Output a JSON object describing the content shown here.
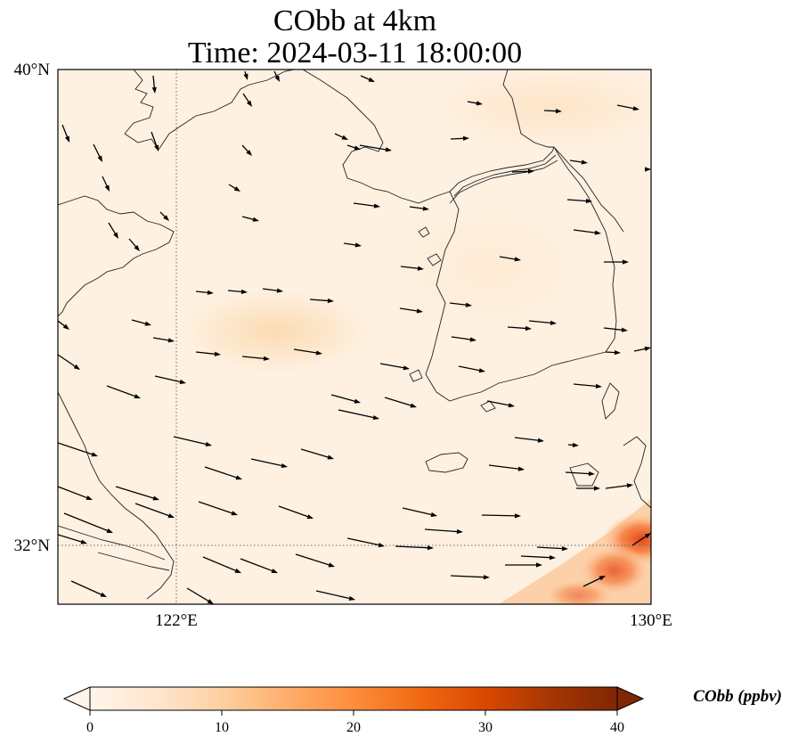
{
  "title": {
    "line1": "CObb at 4km",
    "line2": "Time: 2024-03-11 18:00:00"
  },
  "map": {
    "lat_labels": [
      "40°N",
      "32°N"
    ],
    "lon_labels": [
      "122°E",
      "130°E"
    ],
    "extent": {
      "lon_min": 120,
      "lon_max": 130,
      "lat_min": 31,
      "lat_max": 40
    },
    "gridlines": {
      "lons": [
        122
      ],
      "lats": [
        32
      ],
      "style": "dotted"
    },
    "wind_vectors": "shown"
  },
  "colorbar": {
    "label": "CObb (ppbv)",
    "ticks": [
      "0",
      "10",
      "20",
      "30",
      "40"
    ],
    "range": [
      0,
      40
    ],
    "extend": "both",
    "colormap": [
      "#fff5eb",
      "#fee6ce",
      "#fdd0a2",
      "#fdae6b",
      "#fd8d3c",
      "#f16913",
      "#d94801",
      "#a63603",
      "#7f2704"
    ]
  },
  "chart_data": {
    "type": "heatmap",
    "variable": "CObb",
    "units": "ppbv",
    "level": "4km",
    "time": "2024-03-11 18:00:00",
    "value_range_note": "mostly 1-6 ppbv over domain; ~8 ppbv patch near 123.5E 35.5N; up to ~25 ppbv in SE corner near 130E 31.5N",
    "features": [
      {
        "lon": 123.5,
        "lat": 35.5,
        "value": 8
      },
      {
        "lon": 129.8,
        "lat": 31.8,
        "value": 22
      },
      {
        "lon": 129.2,
        "lat": 31.4,
        "value": 18
      },
      {
        "lon": 128.0,
        "lat": 39.5,
        "value": 6
      }
    ]
  }
}
